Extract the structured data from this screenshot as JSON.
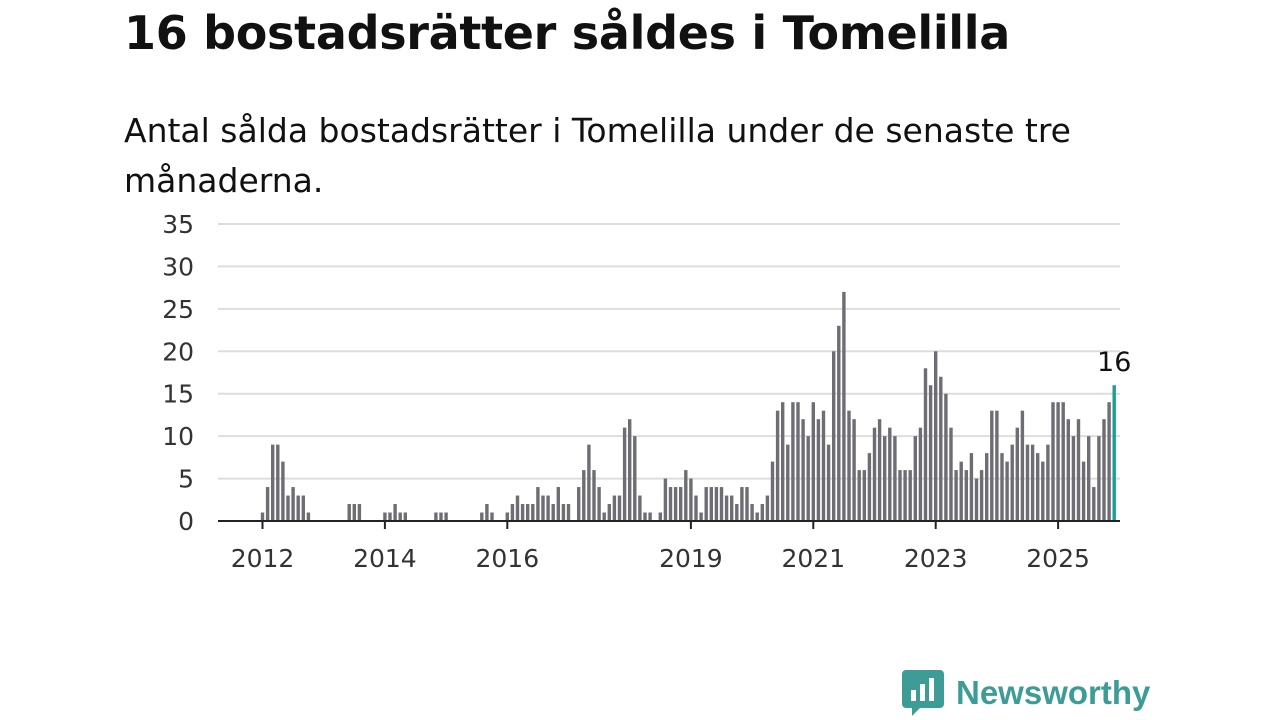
{
  "header": {
    "title": "16 bostadsrätter såldes i Tomelilla",
    "subtitle": "Antal sålda bostadsrätter i Tomelilla under de senaste tre månaderna."
  },
  "brand": {
    "name": "Newsworthy",
    "icon": "newsworthy-chat-bars-icon",
    "color": "#3e9c96"
  },
  "chart_data": {
    "type": "bar",
    "title": "",
    "xlabel": "",
    "ylabel": "",
    "ylim": [
      0,
      35
    ],
    "yticks": [
      0,
      5,
      10,
      15,
      20,
      25,
      30,
      35
    ],
    "xticks": [
      "2012",
      "2014",
      "2016",
      "2019",
      "2021",
      "2023",
      "2025"
    ],
    "grid": true,
    "bar_color": "#6f6d74",
    "highlight_color": "#1f9c96",
    "start": "2012-01",
    "highlight_last": true,
    "annotation": {
      "label": "16",
      "value": 16
    },
    "values": [
      1,
      4,
      9,
      9,
      7,
      3,
      4,
      3,
      3,
      1,
      0,
      0,
      0,
      0,
      0,
      0,
      0,
      2,
      2,
      2,
      0,
      0,
      0,
      0,
      1,
      1,
      2,
      1,
      1,
      0,
      0,
      0,
      0,
      0,
      1,
      1,
      1,
      0,
      0,
      0,
      0,
      0,
      0,
      1,
      2,
      1,
      0,
      0,
      1,
      2,
      3,
      2,
      2,
      2,
      4,
      3,
      3,
      2,
      4,
      2,
      2,
      0,
      4,
      6,
      9,
      6,
      4,
      1,
      2,
      3,
      3,
      11,
      12,
      10,
      3,
      1,
      1,
      0,
      1,
      5,
      4,
      4,
      4,
      6,
      5,
      3,
      1,
      4,
      4,
      4,
      4,
      3,
      3,
      2,
      4,
      4,
      2,
      1,
      2,
      3,
      7,
      13,
      14,
      9,
      14,
      14,
      12,
      10,
      14,
      12,
      13,
      9,
      20,
      23,
      27,
      13,
      12,
      6,
      6,
      8,
      11,
      12,
      10,
      11,
      10,
      6,
      6,
      6,
      10,
      11,
      18,
      16,
      20,
      17,
      15,
      11,
      6,
      7,
      6,
      8,
      5,
      6,
      8,
      13,
      13,
      8,
      7,
      9,
      11,
      13,
      9,
      9,
      8,
      7,
      9,
      14,
      14,
      14,
      12,
      10,
      12,
      7,
      10,
      4,
      10,
      12,
      14,
      16
    ]
  }
}
